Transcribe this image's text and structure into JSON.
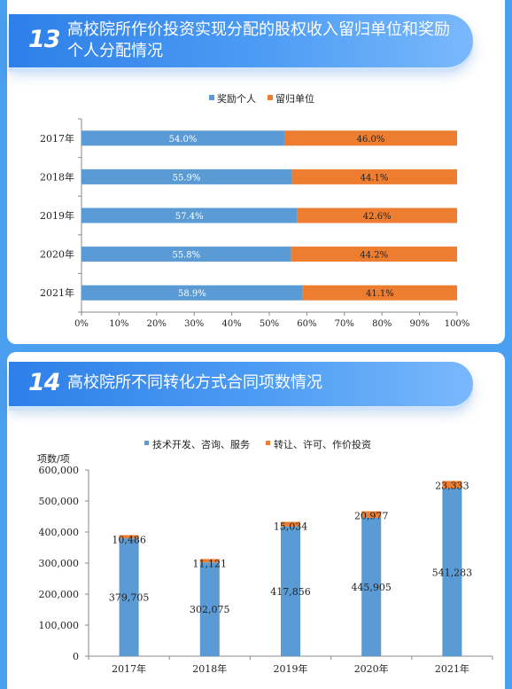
{
  "section13": {
    "number": "13",
    "title": "高校院所作价投资实现分配的股权收入留归单位和奖励个人分配情况"
  },
  "section14": {
    "number": "14",
    "title": "高校院所不同转化方式合同项数情况"
  },
  "chart_data": [
    {
      "type": "bar",
      "orientation": "horizontal",
      "stacked": true,
      "categories": [
        "2017年",
        "2018年",
        "2019年",
        "2020年",
        "2021年"
      ],
      "series": [
        {
          "name": "奖励个人",
          "color": "#5b9bd5",
          "values": [
            54.0,
            55.9,
            57.4,
            55.8,
            58.9
          ],
          "labels": [
            "54.0%",
            "55.9%",
            "57.4%",
            "55.8%",
            "58.9%"
          ]
        },
        {
          "name": "留归单位",
          "color": "#ed7d31",
          "values": [
            46.0,
            44.1,
            42.6,
            44.2,
            41.1
          ],
          "labels": [
            "46.0%",
            "44.1%",
            "42.6%",
            "44.2%",
            "41.1%"
          ]
        }
      ],
      "xlim": [
        0,
        100
      ],
      "xticks": [
        "0%",
        "10%",
        "20%",
        "30%",
        "40%",
        "50%",
        "60%",
        "70%",
        "80%",
        "90%",
        "100%"
      ],
      "legend": "top-center",
      "grid": false
    },
    {
      "type": "bar",
      "stacked": true,
      "categories": [
        "2017年",
        "2018年",
        "2019年",
        "2020年",
        "2021年"
      ],
      "series": [
        {
          "name": "技术开发、咨询、服务",
          "color": "#5b9bd5",
          "values": [
            379705,
            302075,
            417856,
            445905,
            541283
          ],
          "labels": [
            "379,705",
            "302,075",
            "417,856",
            "445,905",
            "541,283"
          ]
        },
        {
          "name": "转让、许可、作价投资",
          "color": "#ed7d31",
          "values": [
            10486,
            11121,
            15034,
            20977,
            23333
          ],
          "labels": [
            "10,486",
            "11,121",
            "15,034",
            "20,977",
            "23,333"
          ]
        }
      ],
      "ylabel": "项数/项",
      "ylim": [
        0,
        600000
      ],
      "yticks": [
        "0",
        "100,000",
        "200,000",
        "300,000",
        "400,000",
        "500,000",
        "600,000"
      ],
      "legend": "top-center",
      "grid": false
    }
  ]
}
